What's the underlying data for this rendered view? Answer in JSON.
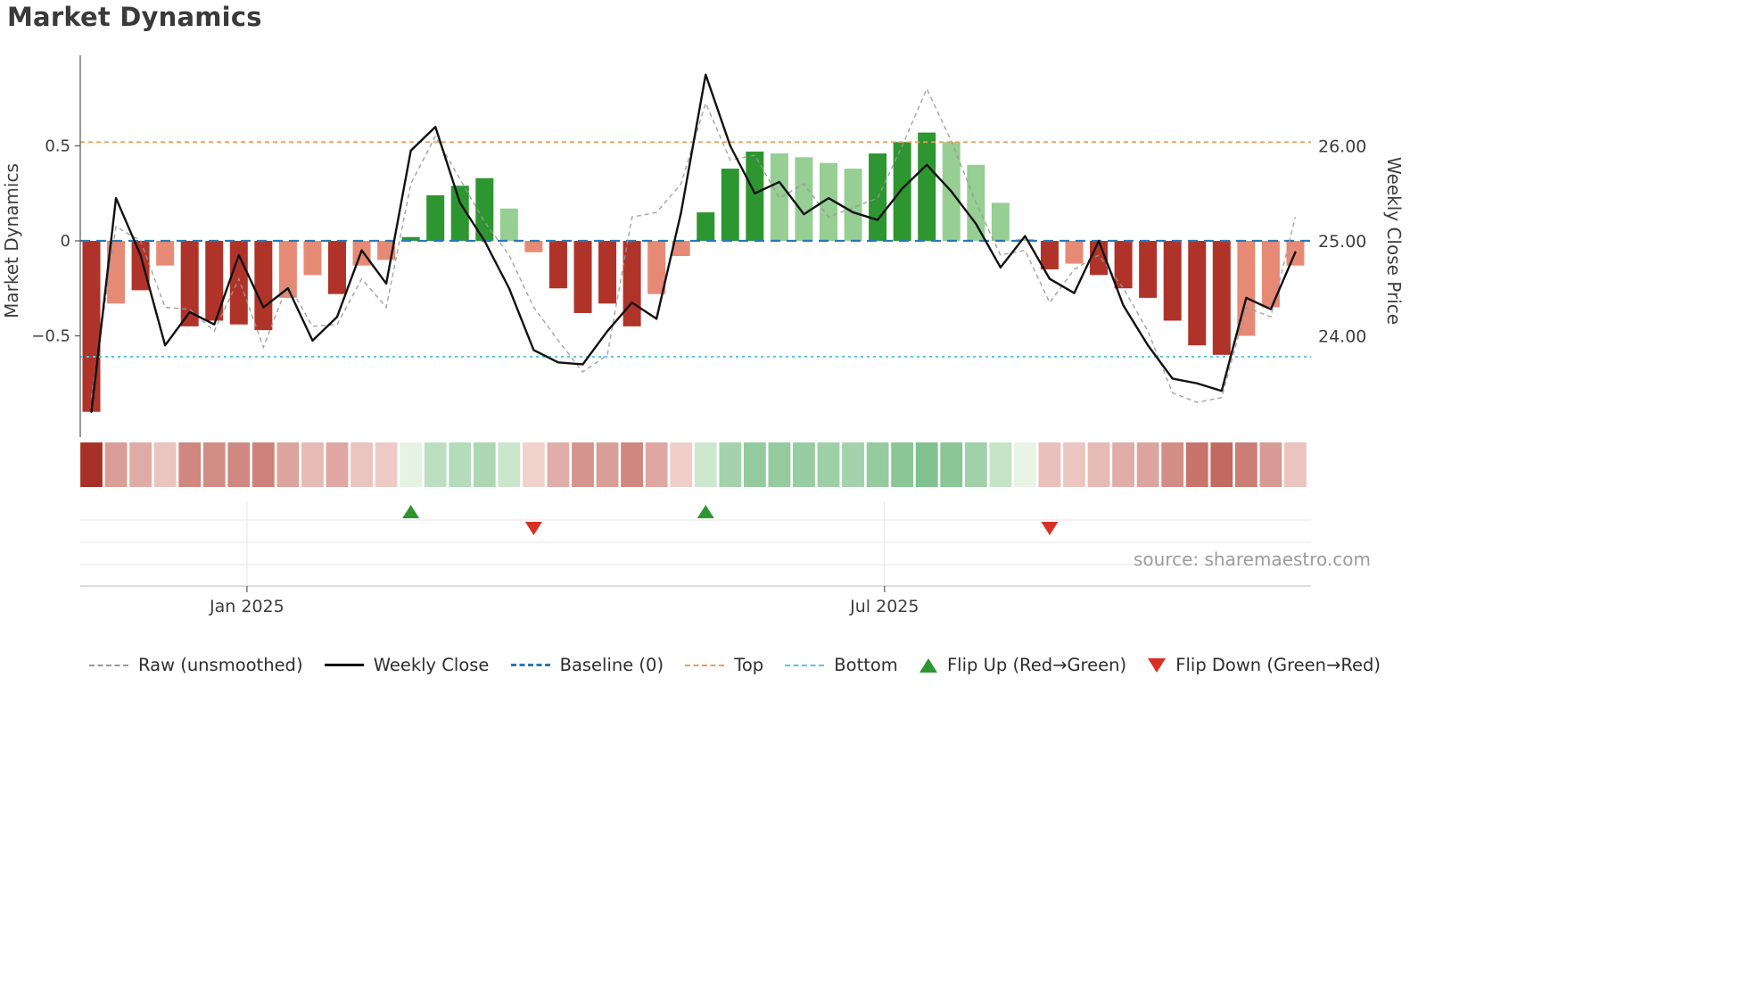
{
  "title": "Market Dynamics",
  "source": "source: sharemaestro.com",
  "axes": {
    "left_label": "Market Dynamics",
    "right_label": "Weekly Close Price",
    "left_ticks": [
      {
        "value": 0.5,
        "label": "0.5"
      },
      {
        "value": 0.0,
        "label": "0"
      },
      {
        "value": -0.5,
        "label": "−0.5"
      }
    ],
    "right_ticks": [
      {
        "value": 26.0,
        "label": "26.00"
      },
      {
        "value": 25.0,
        "label": "25.00"
      },
      {
        "value": 24.0,
        "label": "24.00"
      }
    ],
    "x_ticks": [
      {
        "index": 6.33,
        "label": "Jan 2025"
      },
      {
        "index": 32.28,
        "label": "Jul 2025"
      }
    ],
    "left_range": [
      -1.03,
      0.98
    ],
    "right_range": [
      22.93,
      26.95
    ],
    "grid": "off in main panel; light category gridlines in flip-marker panel"
  },
  "chart_data": {
    "type": "bar",
    "subtype": "oscillator bars + dual-axis lines + heatmap strip + flip markers",
    "n_points": 50,
    "baseline": 0,
    "top_threshold": 0.52,
    "bottom_threshold": -0.61,
    "bars": {
      "values": [
        -0.9,
        -0.33,
        -0.26,
        -0.13,
        -0.45,
        -0.42,
        -0.44,
        -0.47,
        -0.3,
        -0.18,
        -0.28,
        -0.13,
        -0.1,
        0.02,
        0.24,
        0.29,
        0.33,
        0.17,
        -0.06,
        -0.25,
        -0.38,
        -0.33,
        -0.45,
        -0.28,
        -0.08,
        0.15,
        0.38,
        0.47,
        0.46,
        0.44,
        0.41,
        0.38,
        0.46,
        0.52,
        0.57,
        0.52,
        0.4,
        0.2,
        0.01,
        -0.15,
        -0.12,
        -0.18,
        -0.25,
        -0.3,
        -0.42,
        -0.55,
        -0.6,
        -0.5,
        -0.35,
        -0.13
      ],
      "tone": [
        "dark",
        "light",
        "dark",
        "light",
        "dark",
        "dark",
        "dark",
        "dark",
        "light",
        "light",
        "dark",
        "light",
        "light",
        "dark",
        "dark",
        "dark",
        "dark",
        "light",
        "light",
        "dark",
        "dark",
        "dark",
        "dark",
        "light",
        "light",
        "dark",
        "dark",
        "dark",
        "light",
        "light",
        "light",
        "light",
        "dark",
        "dark",
        "dark",
        "light",
        "light",
        "light",
        "light",
        "dark",
        "light",
        "dark",
        "dark",
        "dark",
        "dark",
        "dark",
        "dark",
        "light",
        "light",
        "light"
      ]
    },
    "series": [
      {
        "name": "Weekly Close",
        "axis": "right",
        "values": [
          23.2,
          25.45,
          24.85,
          23.9,
          24.25,
          24.12,
          24.85,
          24.3,
          24.5,
          23.95,
          24.2,
          24.9,
          24.55,
          25.95,
          26.2,
          25.4,
          25.0,
          24.5,
          23.85,
          23.72,
          23.7,
          24.05,
          24.35,
          24.18,
          25.3,
          26.75,
          26.0,
          25.5,
          25.62,
          25.28,
          25.45,
          25.3,
          25.22,
          25.55,
          25.8,
          25.52,
          25.18,
          24.72,
          25.05,
          24.6,
          24.45,
          25.0,
          24.32,
          23.9,
          23.55,
          23.5,
          23.42,
          24.4,
          24.28,
          24.88
        ]
      },
      {
        "name": "Raw (unsmoothed)",
        "axis": "right",
        "values": [
          23.35,
          25.15,
          25.0,
          24.3,
          24.28,
          24.05,
          24.6,
          23.88,
          24.55,
          24.1,
          24.12,
          24.6,
          24.3,
          25.6,
          26.1,
          25.65,
          25.2,
          24.85,
          24.3,
          23.95,
          23.62,
          23.8,
          25.25,
          25.3,
          25.6,
          26.45,
          25.85,
          25.9,
          25.45,
          25.6,
          25.25,
          25.35,
          25.45,
          26.0,
          26.6,
          26.05,
          25.4,
          24.85,
          24.9,
          24.35,
          24.7,
          24.85,
          24.5,
          24.05,
          23.4,
          23.3,
          23.35,
          24.3,
          24.2,
          25.25
        ]
      }
    ],
    "flip_up_indices": [
      13,
      25
    ],
    "flip_down_indices": [
      18,
      39
    ],
    "heatmap": "strip below bars; cell color intensity maps |bar value|, red for negative, green for positive"
  },
  "legend": {
    "items": [
      {
        "label": "Raw (unsmoothed)",
        "glyph": "dashed-gray-line"
      },
      {
        "label": "Weekly Close",
        "glyph": "solid-black-line"
      },
      {
        "label": "Baseline (0)",
        "glyph": "dashed-blue-line"
      },
      {
        "label": "Top",
        "glyph": "dashed-orange-line"
      },
      {
        "label": "Bottom",
        "glyph": "dashed-cyan-line"
      },
      {
        "label": "Flip Up (Red→Green)",
        "glyph": "green-up-triangle"
      },
      {
        "label": "Flip Down (Green→Red)",
        "glyph": "red-down-triangle"
      }
    ]
  },
  "colors": {
    "bar_red_dark": "#b0332a",
    "bar_red_light": "#e68a76",
    "bar_green_dark": "#2e9630",
    "bar_green_light": "#96ce93",
    "raw_line": "#999999",
    "close_line": "#111111",
    "baseline": "#2779b8",
    "top": "#f09a57",
    "bottom": "#56c6ea",
    "flip_up": "#2e9630",
    "flip_down": "#d93025",
    "heat_red_lo": "#f6ddd9",
    "heat_red_hi": "#a83127",
    "heat_green_lo": "#eaf5e6",
    "heat_green_hi": "#43a35c",
    "axis_text": "#3d3d3d",
    "grid_light": "#e6e6e6",
    "spine": "#c9c9c9",
    "source_text": "#9b9b9b"
  }
}
